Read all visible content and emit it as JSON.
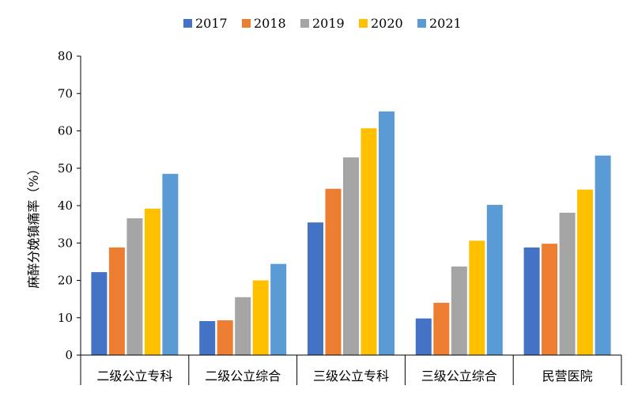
{
  "chart_data": {
    "type": "bar",
    "categories": [
      "二级公立专科",
      "二级公立综合",
      "三级公立专科",
      "三级公立综合",
      "民营医院"
    ],
    "series": [
      {
        "name": "2017",
        "color": "#4472C4",
        "values": [
          22.2,
          9.1,
          35.5,
          9.8,
          28.8
        ]
      },
      {
        "name": "2018",
        "color": "#ED7D31",
        "values": [
          28.8,
          9.3,
          44.5,
          14.0,
          29.8
        ]
      },
      {
        "name": "2019",
        "color": "#A5A5A5",
        "values": [
          36.6,
          15.5,
          52.9,
          23.7,
          38.1
        ]
      },
      {
        "name": "2020",
        "color": "#FFC000",
        "values": [
          39.2,
          20.0,
          60.7,
          30.6,
          44.3
        ]
      },
      {
        "name": "2021",
        "color": "#5B9BD5",
        "values": [
          48.5,
          24.4,
          65.2,
          40.2,
          53.4
        ]
      }
    ],
    "ylabel": "麻醉分娩镇痛率（%）",
    "xlabel": "",
    "ylim": [
      0,
      80
    ],
    "yticks": [
      0,
      10,
      20,
      30,
      40,
      50,
      60,
      70,
      80
    ],
    "grid": false,
    "legend_position": "top"
  }
}
